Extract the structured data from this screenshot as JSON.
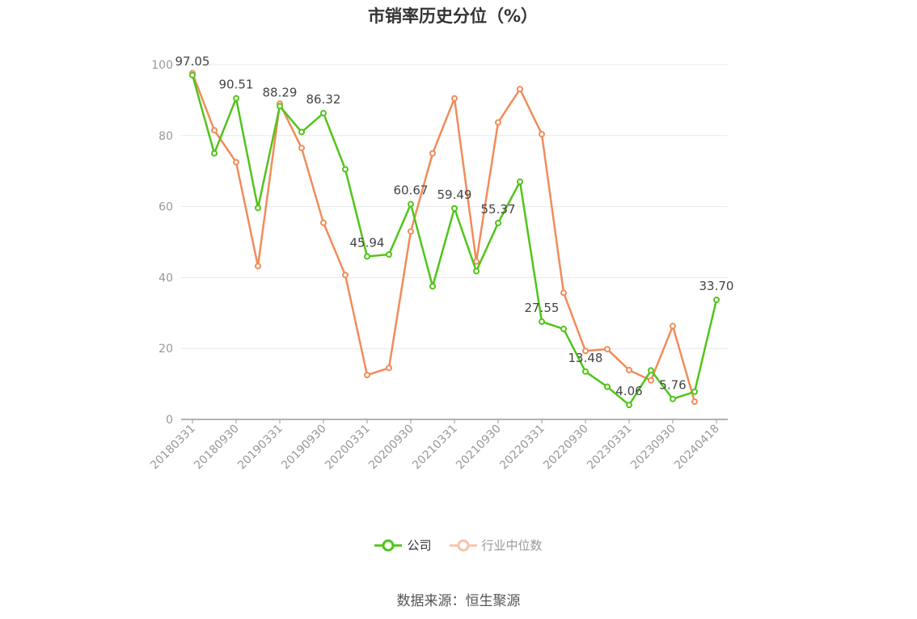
{
  "chart_data": {
    "type": "line",
    "title": "市销率历史分位（%）",
    "ylim": [
      0,
      100
    ],
    "y_ticks": [
      0,
      20,
      40,
      60,
      80,
      100
    ],
    "grid": true,
    "legend_position": "bottom",
    "x": [
      "20180331",
      "20180630",
      "20180930",
      "20181231",
      "20190331",
      "20190630",
      "20190930",
      "20191231",
      "20200331",
      "20200630",
      "20200930",
      "20201231",
      "20210331",
      "20210630",
      "20210930",
      "20211231",
      "20220331",
      "20220630",
      "20220930",
      "20221231",
      "20230331",
      "20230630",
      "20230930",
      "20231231",
      "20240418"
    ],
    "x_tick_labels": [
      "20180331",
      "20180930",
      "20190331",
      "20190930",
      "20200331",
      "20200930",
      "20210331",
      "20210930",
      "20220331",
      "20220930",
      "20230331",
      "20230930",
      "20240418"
    ],
    "series": [
      {
        "name": "公司",
        "color": "#52c41a",
        "values": [
          97.05,
          75.0,
          90.51,
          59.6,
          88.29,
          81.0,
          86.32,
          70.5,
          45.94,
          46.5,
          60.67,
          37.5,
          59.49,
          41.8,
          55.37,
          67.0,
          27.55,
          25.5,
          13.48,
          9.2,
          4.06,
          13.8,
          5.76,
          7.8,
          33.7
        ],
        "labels": {
          "0": "97.05",
          "2": "90.51",
          "4": "88.29",
          "6": "86.32",
          "8": "45.94",
          "10": "60.67",
          "12": "59.49",
          "14": "55.37",
          "16": "27.55",
          "18": "13.48",
          "20": "4.06",
          "22": "5.76",
          "24": "33.70"
        }
      },
      {
        "name": "行业中位数",
        "color": "#f08c5a",
        "values": [
          97.6,
          81.5,
          72.5,
          43.2,
          89.0,
          76.5,
          55.4,
          40.7,
          12.5,
          14.5,
          53.0,
          75.0,
          90.5,
          44.5,
          83.7,
          93.1,
          80.4,
          35.7,
          19.3,
          19.8,
          13.9,
          11.0,
          26.3,
          5.0,
          null
        ]
      }
    ]
  },
  "source": "数据来源：恒生聚源"
}
